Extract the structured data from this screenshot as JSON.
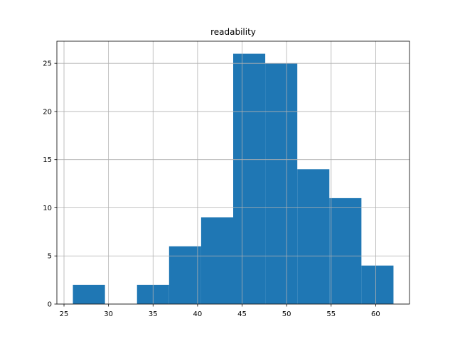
{
  "chart_data": {
    "type": "histogram",
    "title": "readability",
    "bins": [
      26,
      29.6,
      33.2,
      36.8,
      40.4,
      44,
      47.6,
      51.2,
      54.8,
      58.4,
      62
    ],
    "counts": [
      2,
      0,
      2,
      6,
      9,
      26,
      25,
      14,
      11,
      4
    ],
    "color": "#1f77b4",
    "xlim": [
      24.2,
      63.8
    ],
    "xticks": [
      25,
      30,
      35,
      40,
      45,
      50,
      55,
      60
    ],
    "ylim": [
      0,
      27.3
    ],
    "yticks": [
      0,
      5,
      10,
      15,
      20,
      25
    ],
    "grid": true
  }
}
